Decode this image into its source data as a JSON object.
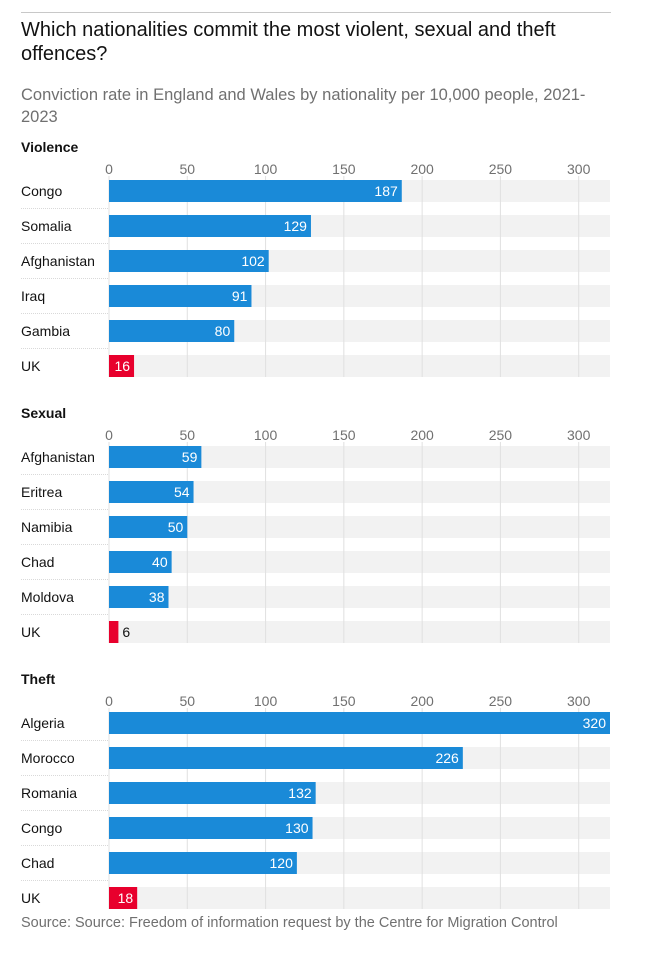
{
  "header": {
    "title": "Which nationalities commit the most violent, sexual and theft offences?",
    "subtitle": "Conviction rate in England and Wales by nationality per 10,000 people, 2021-2023"
  },
  "colors": {
    "bar": "#1a8ad8",
    "highlight": "#e8002d",
    "track": "#f2f2f2",
    "grid": "#e0e0e0",
    "separator": "#d9d9d9"
  },
  "chart_data": [
    {
      "type": "bar",
      "orientation": "horizontal",
      "title": "Violence",
      "categories": [
        "Congo",
        "Somalia",
        "Afghanistan",
        "Iraq",
        "Gambia",
        "UK"
      ],
      "values": [
        187,
        129,
        102,
        91,
        80,
        16
      ],
      "highlight": [
        "UK"
      ],
      "xlim": [
        0,
        320
      ],
      "ticks": [
        0,
        50,
        100,
        150,
        200,
        250,
        300
      ],
      "grid": true
    },
    {
      "type": "bar",
      "orientation": "horizontal",
      "title": "Sexual",
      "categories": [
        "Afghanistan",
        "Eritrea",
        "Namibia",
        "Chad",
        "Moldova",
        "UK"
      ],
      "values": [
        59,
        54,
        50,
        40,
        38,
        6
      ],
      "highlight": [
        "UK"
      ],
      "xlim": [
        0,
        320
      ],
      "ticks": [
        0,
        50,
        100,
        150,
        200,
        250,
        300
      ],
      "grid": true
    },
    {
      "type": "bar",
      "orientation": "horizontal",
      "title": "Theft",
      "categories": [
        "Algeria",
        "Morocco",
        "Romania",
        "Congo",
        "Chad",
        "UK"
      ],
      "values": [
        320,
        226,
        132,
        130,
        120,
        18
      ],
      "highlight": [
        "UK"
      ],
      "xlim": [
        0,
        320
      ],
      "ticks": [
        0,
        50,
        100,
        150,
        200,
        250,
        300
      ],
      "grid": true
    }
  ],
  "footer": {
    "source": "Source: Source: Freedom of information request by the Centre for Migration Control"
  }
}
